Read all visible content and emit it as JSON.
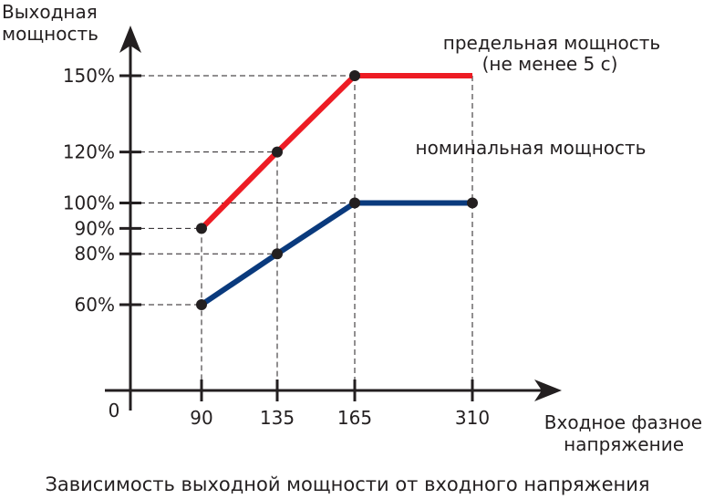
{
  "chart_data": {
    "type": "line",
    "title": "Зависимость выходной мощности от входного напряжения",
    "ylabel": [
      "Выходная",
      "мощность"
    ],
    "xlabel": [
      "Входное фазное",
      "напряжение"
    ],
    "origin_label": "0",
    "x_ticks": [
      90,
      135,
      165,
      310
    ],
    "y_ticks": [
      {
        "value": 60,
        "label": "60%"
      },
      {
        "value": 80,
        "label": "80%"
      },
      {
        "value": 90,
        "label": "90%"
      },
      {
        "value": 100,
        "label": "100%"
      },
      {
        "value": 120,
        "label": "120%"
      },
      {
        "value": 150,
        "label": "150%"
      }
    ],
    "series": [
      {
        "name": [
          "предельная мощность",
          "(не  менее 5 с)"
        ],
        "color": "#ed1c24",
        "points": [
          [
            90,
            90
          ],
          [
            135,
            120
          ],
          [
            165,
            150
          ],
          [
            310,
            150
          ]
        ],
        "markers": [
          [
            90,
            90
          ],
          [
            135,
            120
          ],
          [
            165,
            150
          ]
        ]
      },
      {
        "name": [
          "номинальная мощность"
        ],
        "color": "#0a3a7d",
        "points": [
          [
            90,
            60
          ],
          [
            135,
            80
          ],
          [
            165,
            100
          ],
          [
            310,
            100
          ]
        ],
        "markers": [
          [
            90,
            60
          ],
          [
            135,
            80
          ],
          [
            165,
            100
          ],
          [
            310,
            100
          ]
        ]
      }
    ]
  }
}
